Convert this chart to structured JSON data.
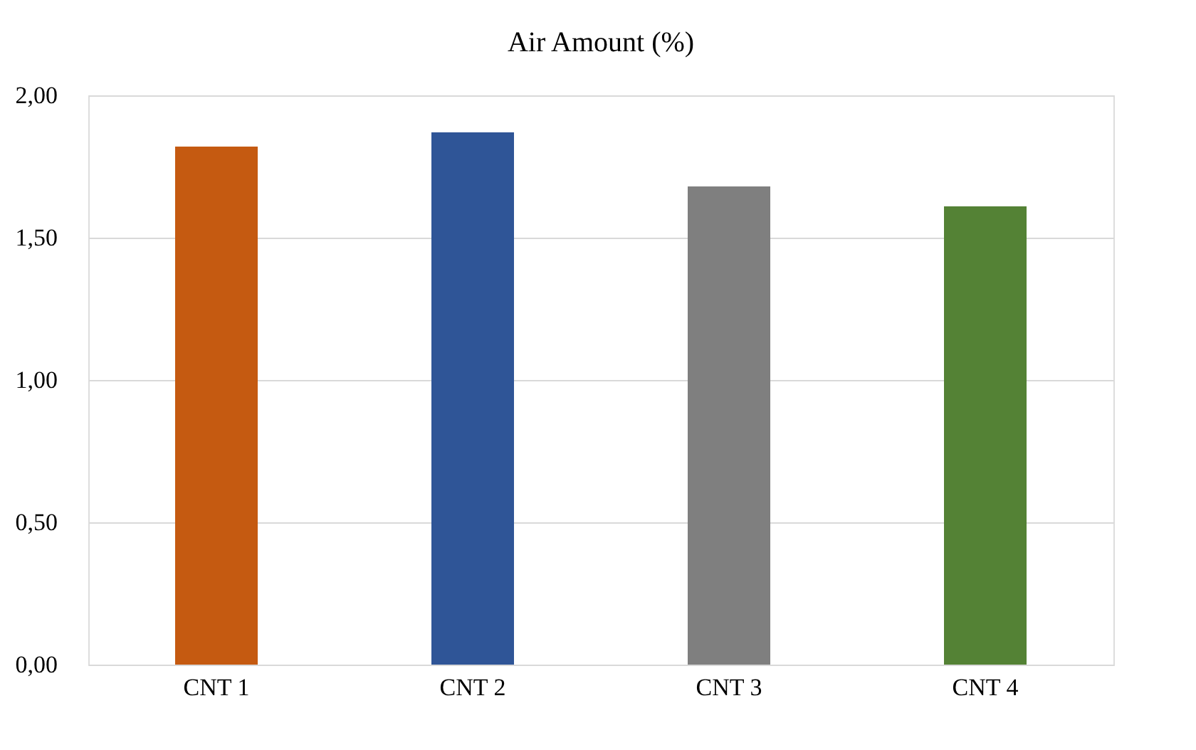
{
  "chart_data": {
    "type": "bar",
    "title": "Air Amount (%)",
    "categories": [
      "CNT 1",
      "CNT 2",
      "CNT 3",
      "CNT 4"
    ],
    "values": [
      1.82,
      1.87,
      1.68,
      1.61
    ],
    "colors": [
      "#c55a11",
      "#2f5597",
      "#7f7f7f",
      "#548235"
    ],
    "ylim": [
      0,
      2
    ],
    "yticks": [
      {
        "value": 0,
        "label": "0,00"
      },
      {
        "value": 0.5,
        "label": "0,50"
      },
      {
        "value": 1,
        "label": "1,00"
      },
      {
        "value": 1.5,
        "label": "1,50"
      },
      {
        "value": 2,
        "label": "2,00"
      }
    ],
    "grid": "y"
  }
}
